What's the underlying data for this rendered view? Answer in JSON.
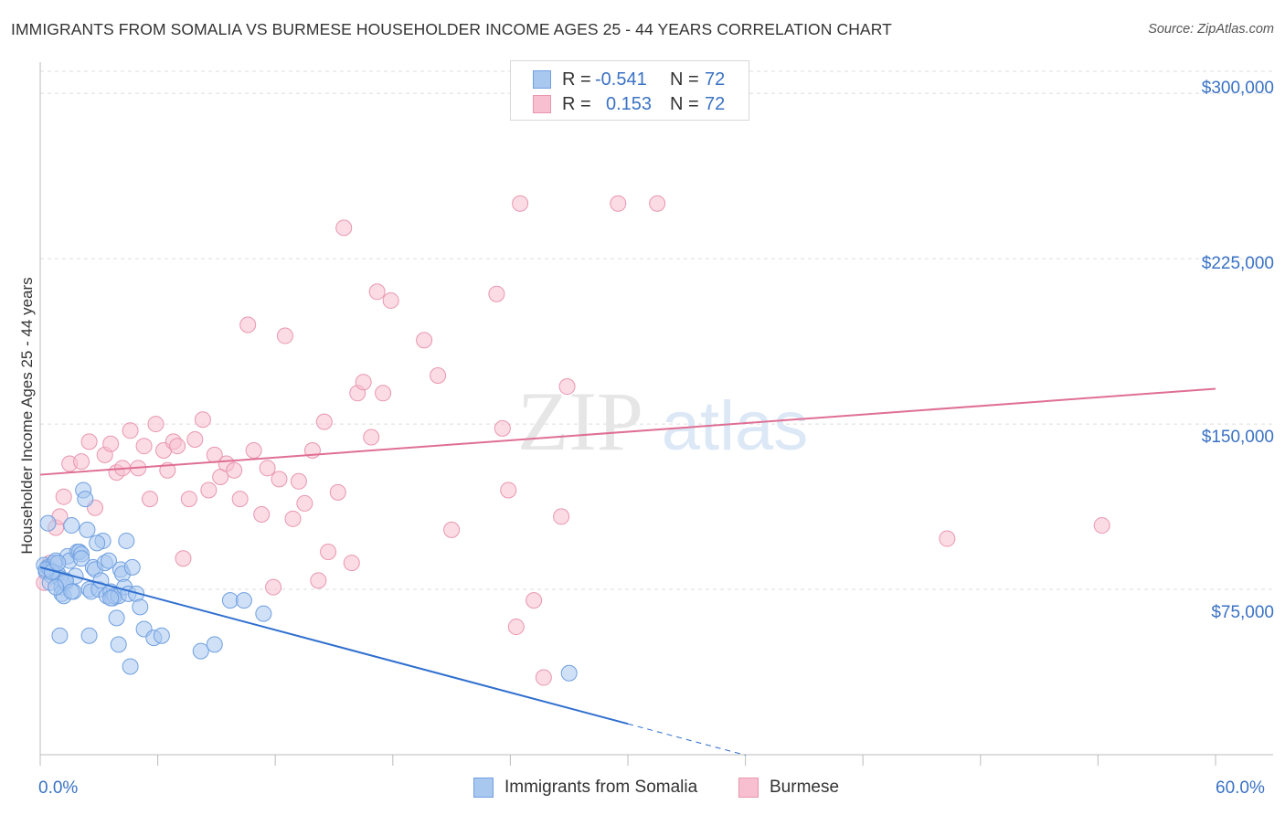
{
  "header": {
    "title": "IMMIGRANTS FROM SOMALIA VS BURMESE HOUSEHOLDER INCOME AGES 25 - 44 YEARS CORRELATION CHART",
    "source": "Source: ZipAtlas.com"
  },
  "watermark": {
    "zip": "ZIP",
    "atlas": "atlas"
  },
  "legend": {
    "rows": [
      {
        "r_label": "R =",
        "r_value": "-0.541",
        "n_label": "N =",
        "n_value": "72",
        "color": "#a9c8f0",
        "border": "#6f9fe0"
      },
      {
        "r_label": "R =",
        "r_value": "0.153",
        "n_label": "N =",
        "n_value": "72",
        "color": "#f7bfd0",
        "border": "#e996b0"
      }
    ]
  },
  "bottom_legend": {
    "somalia": "Immigrants from Somalia",
    "burmese": "Burmese"
  },
  "chart_data": {
    "type": "scatter",
    "title": "IMMIGRANTS FROM SOMALIA VS BURMESE HOUSEHOLDER INCOME AGES 25 - 44 YEARS CORRELATION CHART",
    "xlabel": "",
    "ylabel": "Householder Income Ages 25 - 44 years",
    "xlim": [
      0,
      60
    ],
    "ylim": [
      0,
      310000
    ],
    "x_tick_labels": [
      "0.0%",
      "60.0%"
    ],
    "y_ticks": [
      75000,
      150000,
      225000,
      300000
    ],
    "y_tick_labels": [
      "$75,000",
      "$150,000",
      "$225,000",
      "$300,000"
    ],
    "grid": true,
    "series": [
      {
        "name": "Immigrants from Somalia",
        "color": "#6f9fe0",
        "fill": "#a9c8f0",
        "trend": {
          "x0": 0,
          "y0": 85000,
          "x1": 30,
          "y1": 14000,
          "dashed_to_x": 36
        },
        "points": [
          [
            0.2,
            86000
          ],
          [
            0.3,
            83000
          ],
          [
            0.4,
            85000
          ],
          [
            0.5,
            84000
          ],
          [
            0.6,
            81000
          ],
          [
            0.7,
            87000
          ],
          [
            0.8,
            88000
          ],
          [
            0.9,
            82000
          ],
          [
            0.4,
            105000
          ],
          [
            0.5,
            78000
          ],
          [
            0.9,
            82000
          ],
          [
            1.0,
            80000
          ],
          [
            1.1,
            76000
          ],
          [
            1.1,
            73000
          ],
          [
            1.2,
            72000
          ],
          [
            1.3,
            78000
          ],
          [
            1.4,
            90000
          ],
          [
            1.5,
            88000
          ],
          [
            1.6,
            104000
          ],
          [
            1.7,
            74000
          ],
          [
            1.8,
            81000
          ],
          [
            1.9,
            92000
          ],
          [
            2.0,
            92000
          ],
          [
            2.1,
            91000
          ],
          [
            2.2,
            120000
          ],
          [
            2.3,
            116000
          ],
          [
            2.4,
            102000
          ],
          [
            2.5,
            75000
          ],
          [
            2.6,
            74000
          ],
          [
            2.7,
            85000
          ],
          [
            2.8,
            84000
          ],
          [
            3.0,
            75000
          ],
          [
            3.1,
            79000
          ],
          [
            3.2,
            97000
          ],
          [
            3.3,
            87000
          ],
          [
            3.4,
            72000
          ],
          [
            3.5,
            88000
          ],
          [
            3.6,
            74000
          ],
          [
            3.7,
            71000
          ],
          [
            3.8,
            72000
          ],
          [
            3.9,
            62000
          ],
          [
            4.0,
            72000
          ],
          [
            4.1,
            84000
          ],
          [
            4.2,
            82000
          ],
          [
            4.3,
            76000
          ],
          [
            4.4,
            97000
          ],
          [
            4.5,
            73000
          ],
          [
            4.7,
            85000
          ],
          [
            4.9,
            73000
          ],
          [
            5.1,
            67000
          ],
          [
            5.3,
            57000
          ],
          [
            5.8,
            53000
          ],
          [
            6.2,
            54000
          ],
          [
            1.0,
            54000
          ],
          [
            2.5,
            54000
          ],
          [
            4.0,
            50000
          ],
          [
            4.6,
            40000
          ],
          [
            8.2,
            47000
          ],
          [
            8.9,
            50000
          ],
          [
            9.7,
            70000
          ],
          [
            10.4,
            70000
          ],
          [
            11.4,
            64000
          ],
          [
            0.3,
            84000
          ],
          [
            0.6,
            83000
          ],
          [
            0.9,
            87000
          ],
          [
            1.3,
            79000
          ],
          [
            3.6,
            71000
          ],
          [
            2.9,
            96000
          ],
          [
            27.0,
            37000
          ],
          [
            1.6,
            74000
          ],
          [
            2.1,
            89000
          ],
          [
            0.8,
            76000
          ]
        ]
      },
      {
        "name": "Burmese",
        "color": "#e996b0",
        "fill": "#f7bfd0",
        "trend": {
          "x0": 0,
          "y0": 127000,
          "x1": 60,
          "y1": 166000
        },
        "points": [
          [
            0.2,
            78000
          ],
          [
            0.5,
            87000
          ],
          [
            0.6,
            83000
          ],
          [
            0.8,
            103000
          ],
          [
            1.0,
            108000
          ],
          [
            1.2,
            117000
          ],
          [
            1.5,
            132000
          ],
          [
            2.1,
            133000
          ],
          [
            2.5,
            142000
          ],
          [
            2.8,
            112000
          ],
          [
            3.3,
            136000
          ],
          [
            3.6,
            141000
          ],
          [
            3.9,
            128000
          ],
          [
            4.2,
            130000
          ],
          [
            4.6,
            147000
          ],
          [
            5.0,
            130000
          ],
          [
            5.3,
            140000
          ],
          [
            5.6,
            116000
          ],
          [
            5.9,
            150000
          ],
          [
            6.3,
            138000
          ],
          [
            6.5,
            129000
          ],
          [
            6.8,
            142000
          ],
          [
            7.0,
            140000
          ],
          [
            7.3,
            89000
          ],
          [
            7.6,
            116000
          ],
          [
            7.9,
            143000
          ],
          [
            8.3,
            152000
          ],
          [
            8.6,
            120000
          ],
          [
            8.9,
            136000
          ],
          [
            9.2,
            126000
          ],
          [
            9.5,
            132000
          ],
          [
            9.9,
            129000
          ],
          [
            10.2,
            116000
          ],
          [
            10.6,
            195000
          ],
          [
            10.9,
            138000
          ],
          [
            11.3,
            109000
          ],
          [
            11.6,
            130000
          ],
          [
            11.9,
            76000
          ],
          [
            12.2,
            125000
          ],
          [
            12.5,
            190000
          ],
          [
            12.9,
            107000
          ],
          [
            13.2,
            124000
          ],
          [
            13.5,
            114000
          ],
          [
            13.9,
            138000
          ],
          [
            14.2,
            79000
          ],
          [
            14.5,
            151000
          ],
          [
            14.7,
            92000
          ],
          [
            15.2,
            119000
          ],
          [
            15.5,
            239000
          ],
          [
            15.9,
            87000
          ],
          [
            16.2,
            164000
          ],
          [
            16.5,
            169000
          ],
          [
            16.9,
            144000
          ],
          [
            17.2,
            210000
          ],
          [
            17.5,
            164000
          ],
          [
            17.9,
            206000
          ],
          [
            19.6,
            188000
          ],
          [
            20.3,
            172000
          ],
          [
            21.0,
            102000
          ],
          [
            23.3,
            209000
          ],
          [
            23.9,
            120000
          ],
          [
            23.6,
            148000
          ],
          [
            24.3,
            58000
          ],
          [
            24.5,
            250000
          ],
          [
            25.2,
            70000
          ],
          [
            25.7,
            35000
          ],
          [
            26.6,
            108000
          ],
          [
            26.9,
            167000
          ],
          [
            29.5,
            250000
          ],
          [
            31.5,
            250000
          ],
          [
            46.3,
            98000
          ],
          [
            54.2,
            104000
          ]
        ]
      }
    ]
  }
}
